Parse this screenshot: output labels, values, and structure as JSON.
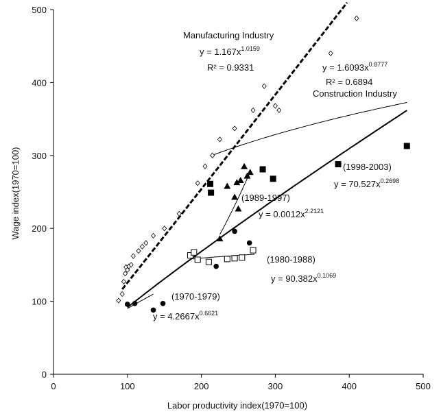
{
  "chart_data": {
    "type": "scatter",
    "title": "",
    "xlabel": "Labor productivity index(1970=100)",
    "ylabel": "Wage index(1970=100)",
    "xlim": [
      0,
      500
    ],
    "ylim": [
      0,
      500
    ],
    "xticks": [
      "0",
      "100",
      "200",
      "300",
      "400",
      "500"
    ],
    "yticks": [
      "0",
      "100",
      "200",
      "300",
      "400",
      "500"
    ],
    "grid": false,
    "series": [
      {
        "marker": "open-diamond",
        "points": [
          [
            88,
            101
          ],
          [
            93,
            110
          ],
          [
            95,
            127
          ],
          [
            97,
            138
          ],
          [
            98,
            147
          ],
          [
            100,
            143
          ],
          [
            102,
            148
          ],
          [
            105,
            150
          ],
          [
            108,
            162
          ],
          [
            115,
            169
          ],
          [
            120,
            175
          ],
          [
            125,
            180
          ],
          [
            135,
            190
          ],
          [
            150,
            200
          ],
          [
            170,
            220
          ],
          [
            195,
            262
          ],
          [
            205,
            285
          ],
          [
            215,
            300
          ],
          [
            225,
            322
          ],
          [
            245,
            337
          ],
          [
            270,
            362
          ],
          [
            285,
            395
          ],
          [
            300,
            368
          ],
          [
            305,
            362
          ],
          [
            375,
            440
          ],
          [
            410,
            488
          ]
        ]
      },
      {
        "marker": "filled-circle",
        "points": [
          [
            100,
            96
          ],
          [
            110,
            97
          ],
          [
            135,
            88
          ],
          [
            148,
            97
          ],
          [
            220,
            148
          ],
          [
            245,
            196
          ],
          [
            265,
            180
          ],
          [
            270,
            170
          ]
        ]
      },
      {
        "marker": "open-square",
        "points": [
          [
            185,
            163
          ],
          [
            190,
            167
          ],
          [
            195,
            157
          ],
          [
            210,
            154
          ],
          [
            235,
            158
          ],
          [
            245,
            159
          ],
          [
            255,
            160
          ],
          [
            270,
            170
          ]
        ]
      },
      {
        "marker": "filled-triangle",
        "points": [
          [
            225,
            186
          ],
          [
            235,
            258
          ],
          [
            245,
            243
          ],
          [
            248,
            263
          ],
          [
            250,
            227
          ],
          [
            253,
            266
          ],
          [
            258,
            285
          ],
          [
            262,
            272
          ],
          [
            266,
            277
          ]
        ]
      },
      {
        "marker": "filled-square",
        "points": [
          [
            212,
            261
          ],
          [
            213,
            249
          ],
          [
            283,
            281
          ],
          [
            297,
            268
          ],
          [
            385,
            288
          ],
          [
            478,
            313
          ]
        ]
      }
    ],
    "fits": [
      {
        "style": "dashed",
        "coef": 1.167,
        "exp": 1.0159,
        "x_range": [
          93,
          397
        ]
      },
      {
        "style": "thick",
        "coef": 1.6093,
        "exp": 0.8777,
        "x_range": [
          100,
          478
        ]
      },
      {
        "style": "thin",
        "coef": 4.2667,
        "exp": 0.6621,
        "x_range": [
          100,
          135
        ]
      },
      {
        "style": "thin",
        "coef": 90.382,
        "exp": 0.1069,
        "x_range": [
          188,
          272
        ]
      },
      {
        "style": "thin",
        "coef": 0.0012,
        "exp": 2.2121,
        "x_range": [
          225,
          266
        ]
      },
      {
        "style": "thin",
        "coef": 70.527,
        "exp": 0.2698,
        "x_range": [
          212,
          478
        ]
      }
    ],
    "annotations": [
      {
        "id": "mfg",
        "name": "Manufacturing Industry",
        "eq_base": "y = 1.167x",
        "eq_exp": "1.0159",
        "r2": "R² = 0.9331"
      },
      {
        "id": "con",
        "name": "Construction Industry",
        "eq_base": "y = 1.6093x",
        "eq_exp": "0.8777",
        "r2": "R² = 0.6894"
      },
      {
        "id": "p1",
        "name": "(1970-1979)",
        "eq_base": "y = 4.2667x",
        "eq_exp": "0.6621"
      },
      {
        "id": "p2",
        "name": "(1980-1988)",
        "eq_base": "y = 90.382x",
        "eq_exp": "0.1069"
      },
      {
        "id": "p3",
        "name": "(1989-1997)",
        "eq_base": "y = 0.0012x",
        "eq_exp": "2.2121"
      },
      {
        "id": "p4",
        "name": "(1998-2003)",
        "eq_base": "y = 70.527x",
        "eq_exp": "0.2698"
      }
    ]
  }
}
